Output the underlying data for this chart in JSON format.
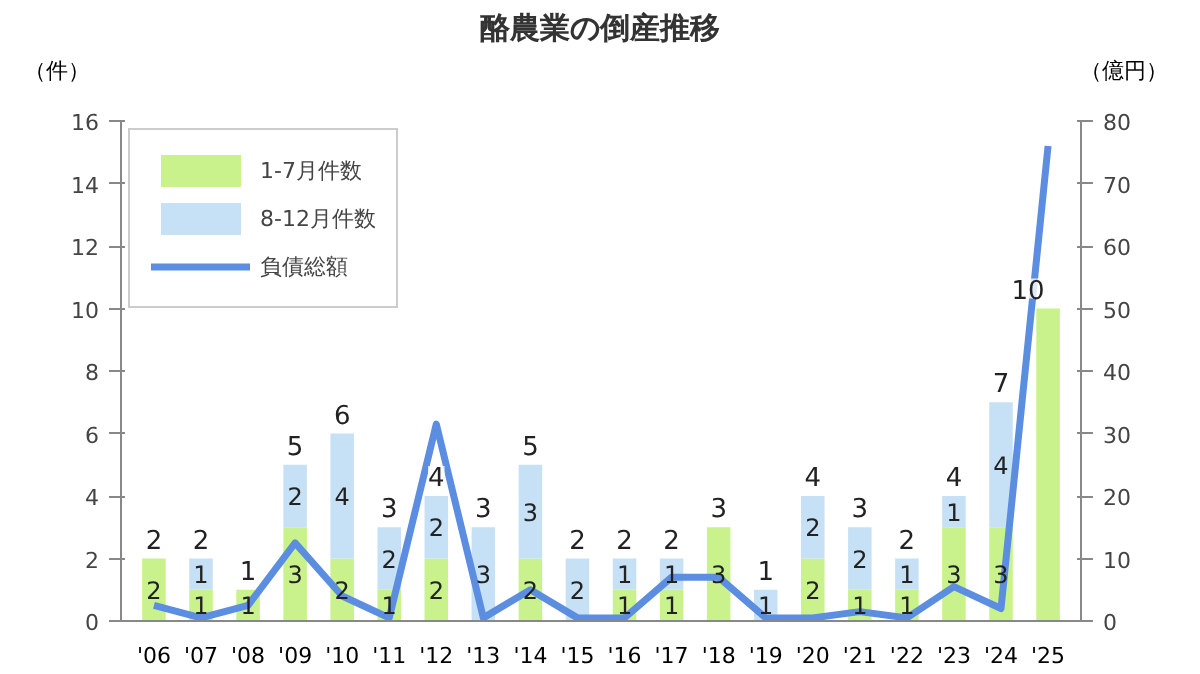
{
  "chart_data": {
    "type": "bar",
    "title": "酪農業の倒産推移",
    "ylabel": "（件）",
    "y2label": "（億円）",
    "categories": [
      "'06",
      "'07",
      "'08",
      "'09",
      "'10",
      "'11",
      "'12",
      "'13",
      "'14",
      "'15",
      "'16",
      "'17",
      "'18",
      "'19",
      "'20",
      "'21",
      "'22",
      "'23",
      "'24",
      "'25"
    ],
    "stacked": true,
    "series": [
      {
        "name": "1-7月件数",
        "color": "#c9f28c",
        "values": [
          2,
          1,
          1,
          3,
          2,
          1,
          2,
          0,
          2,
          0,
          1,
          1,
          3,
          0,
          2,
          1,
          1,
          3,
          3,
          10
        ],
        "value_labels": [
          "2",
          "1",
          "1",
          "3",
          "2",
          "1",
          "2",
          null,
          "2",
          null,
          "1",
          "1",
          "3",
          null,
          "2",
          "1",
          "1",
          "3",
          "3",
          null
        ]
      },
      {
        "name": "8-12月件数",
        "color": "#c6e1f6",
        "values": [
          0,
          1,
          0,
          2,
          4,
          2,
          2,
          3,
          3,
          2,
          1,
          1,
          0,
          1,
          2,
          2,
          1,
          1,
          4,
          0
        ],
        "value_labels": [
          null,
          "1",
          null,
          "2",
          "4",
          "2",
          "2",
          "3",
          "3",
          "2",
          "1",
          "1",
          null,
          "1",
          "2",
          "2",
          "1",
          "1",
          "4",
          null
        ]
      },
      {
        "name": "負債総額",
        "type": "line",
        "axis": "y2",
        "color": "#5b8de0",
        "values": [
          2.5,
          0.5,
          2.5,
          12.5,
          4,
          0.5,
          31.5,
          0.5,
          5,
          0.5,
          0.5,
          7,
          7,
          0.5,
          0.5,
          1.5,
          0.5,
          5.5,
          2,
          76
        ]
      }
    ],
    "totals": [
      "2",
      "2",
      "1",
      "5",
      "6",
      "3",
      "4",
      "3",
      "5",
      "2",
      "2",
      "2",
      "3",
      "1",
      "4",
      "3",
      "2",
      "4",
      "7",
      "10"
    ],
    "ylim": [
      0,
      16
    ],
    "yticks": [
      0,
      2,
      4,
      6,
      8,
      10,
      12,
      14,
      16
    ],
    "y2lim": [
      0,
      80
    ],
    "y2ticks": [
      0,
      10,
      20,
      30,
      40,
      50,
      60,
      70,
      80
    ],
    "grid": false,
    "legend": "top left"
  }
}
